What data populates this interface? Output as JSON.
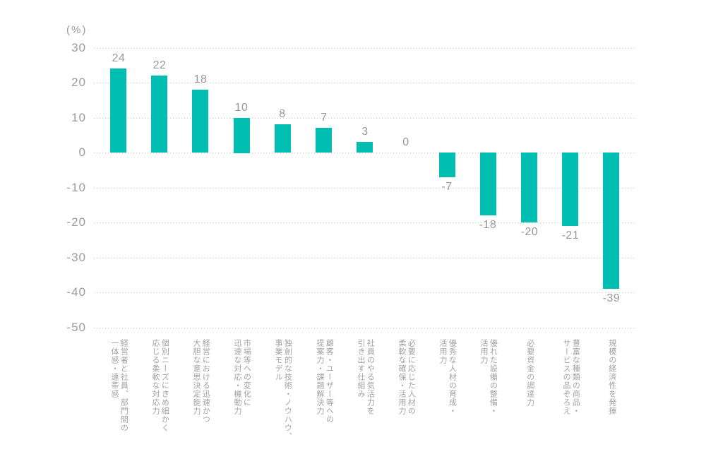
{
  "chart_data": {
    "type": "bar",
    "title": "",
    "unit_label": "(%)",
    "categories": [
      "経営者と社員、部門間の\n一体感・連帯感",
      "個別ニーズにきめ細かく\n応じる柔軟な対応力",
      "経営における迅速かつ\n大胆な意思決定能力",
      "市場等への変化に\n迅速な対応・機動力",
      "独創的な技術・ノウハウ、\n事業モデル",
      "顧客・ユーザー等への\n提案力・課題解決力",
      "社員のやる気活力を\n引き出す仕組み",
      "必要に応じた人材の\n柔軟な確保・活用力",
      "優秀な人材の育成・\n活用力",
      "優れた設備の整備・\n活用力",
      "必要資金の調達力",
      "豊富な種類の商品・\nサービスの品ぞろえ",
      "規模の経済性を発揮"
    ],
    "values": [
      24,
      22,
      18,
      10,
      8,
      7,
      3,
      0,
      -7,
      -18,
      -20,
      -21,
      -39
    ],
    "value_labels": [
      "24",
      "22",
      "18",
      "10",
      "8",
      "7",
      "3",
      "0",
      "-7",
      "-18",
      "-20",
      "-21",
      "-39"
    ],
    "ytick_labels": [
      "30",
      "20",
      "10",
      "0",
      "-10",
      "-20",
      "-30",
      "-40",
      "-50"
    ],
    "yticks": [
      30,
      20,
      10,
      0,
      -10,
      -20,
      -30,
      -40,
      -50
    ],
    "ylim": [
      -50,
      30
    ],
    "xlabel": "",
    "ylabel": "(%)",
    "grid": "horizontal-dotted",
    "legend": "none",
    "colors": {
      "bar": "#00bfb2",
      "axis_text": "#9b9b9b",
      "value_text": "#999999",
      "category_text": "#a2a2a2",
      "gridline": "#c4c4c4",
      "background": "#ffffff"
    }
  }
}
